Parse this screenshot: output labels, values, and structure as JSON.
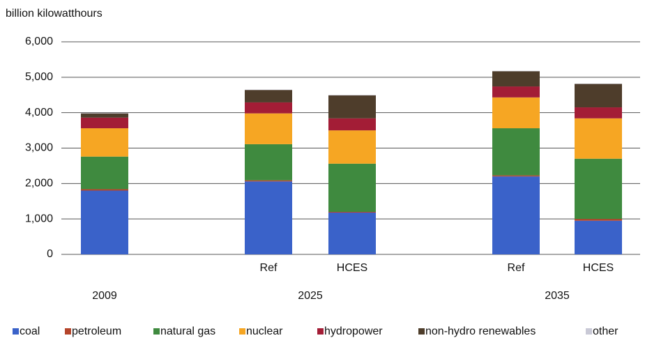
{
  "chart_data": {
    "type": "stacked_bar",
    "y_axis_label": "billion kilowatthours",
    "groups": [
      {
        "name": "2009",
        "categories": [
          null
        ]
      },
      {
        "name": "2025",
        "categories": [
          "Ref",
          "HCES"
        ]
      },
      {
        "name": "2035",
        "categories": [
          "Ref",
          "HCES"
        ]
      }
    ],
    "series": [
      {
        "name": "coal",
        "color": "#3a62c9",
        "values": [
          1800,
          2060,
          1180,
          2200,
          950
        ]
      },
      {
        "name": "petroleum",
        "color": "#b5452b",
        "values": [
          40,
          30,
          20,
          30,
          50
        ]
      },
      {
        "name": "natural gas",
        "color": "#3f8a3f",
        "values": [
          920,
          1020,
          1360,
          1330,
          1700
        ]
      },
      {
        "name": "nuclear",
        "color": "#f6a623",
        "values": [
          800,
          870,
          940,
          870,
          1140
        ]
      },
      {
        "name": "hydropower",
        "color": "#a31d36",
        "values": [
          300,
          310,
          340,
          310,
          310
        ]
      },
      {
        "name": "non-hydro renewables",
        "color": "#4e3d2b",
        "values": [
          120,
          350,
          650,
          430,
          660
        ]
      },
      {
        "name": "other",
        "color": "#c9c9d6",
        "values": [
          10,
          10,
          10,
          10,
          10
        ]
      }
    ],
    "ylim": [
      0,
      6000
    ],
    "yticks": [
      0,
      {
        "value": 1000,
        "label": "1,000"
      },
      {
        "value": 2000,
        "label": "2,000"
      },
      {
        "value": 3000,
        "label": "3,000"
      },
      {
        "value": 4000,
        "label": "4,000"
      },
      {
        "value": 5000,
        "label": "5,000"
      },
      {
        "value": 6000,
        "label": "6,000"
      }
    ],
    "grid": true,
    "legend": "bottom"
  }
}
